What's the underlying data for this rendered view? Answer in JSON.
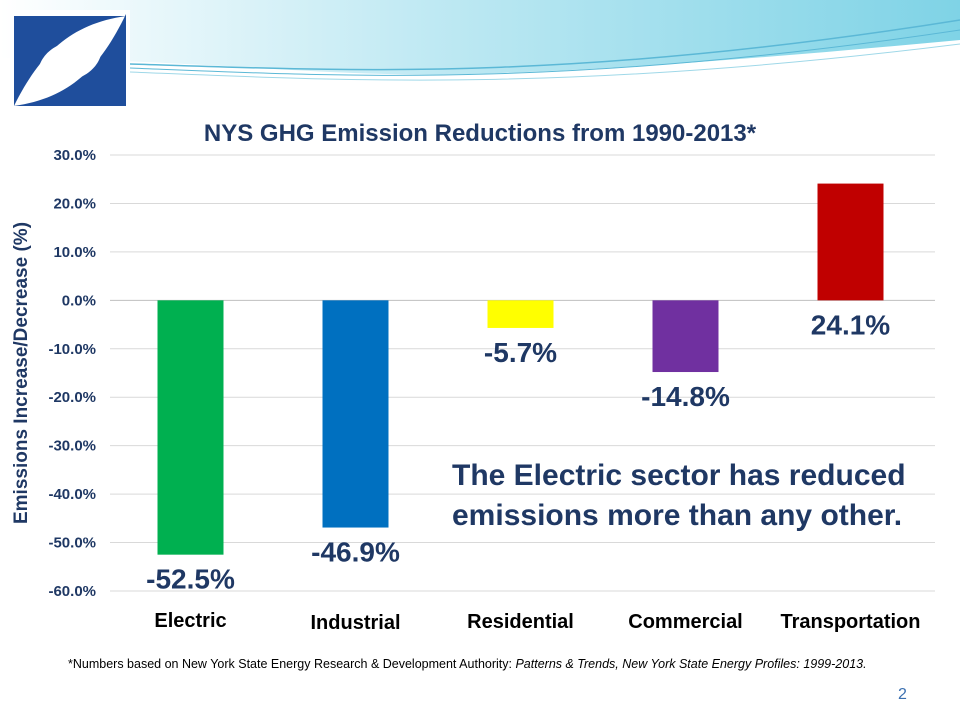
{
  "slide": {
    "footnote_prefix": "*Numbers based on New York State Energy Research & Development Authority: ",
    "footnote_title": "Patterns & Trends, New York State Energy Profiles: 1999-2013.",
    "page_number": "2",
    "annotation_line1": "The Electric sector has reduced",
    "annotation_line2": "emissions more than any other."
  },
  "colors": {
    "title": "#1f3864",
    "wave": "#7fd3e6",
    "logo_blue": "#1f4e9c"
  },
  "chart_data": {
    "type": "bar",
    "title": "NYS GHG Emission Reductions from 1990-2013*",
    "ylabel": "Emissions Increase/Decrease (%)",
    "xlabel": "",
    "categories": [
      "Electric",
      "Industrial",
      "Residential",
      "Commercial",
      "Transportation"
    ],
    "values": [
      -52.5,
      -46.9,
      -5.7,
      -14.8,
      24.1
    ],
    "data_labels": [
      "-52.5%",
      "-46.9%",
      "-5.7%",
      "-14.8%",
      "24.1%"
    ],
    "colors": [
      "#00b050",
      "#0070c0",
      "#ffff00",
      "#7030a0",
      "#c00000"
    ],
    "ylim": [
      -60,
      30
    ],
    "yticks": [
      30,
      20,
      10,
      0,
      -10,
      -20,
      -30,
      -40,
      -50,
      -60
    ],
    "ytick_labels": [
      "30.0%",
      "20.0%",
      "10.0%",
      "0.0%",
      "-10.0%",
      "-20.0%",
      "-30.0%",
      "-40.0%",
      "-50.0%",
      "-60.0%"
    ],
    "grid": true,
    "legend": "none"
  }
}
